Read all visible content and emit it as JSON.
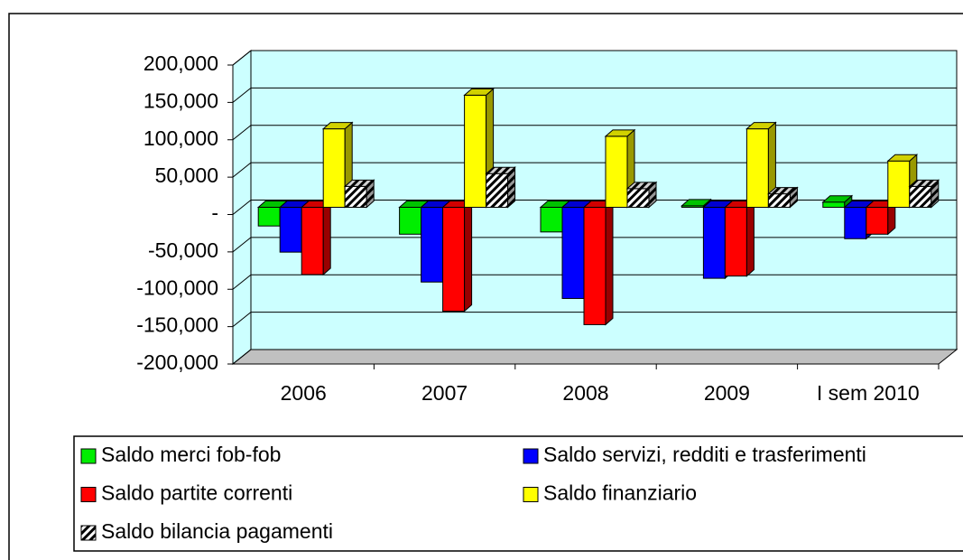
{
  "chart_data": {
    "type": "bar3d",
    "categories": [
      "2006",
      "2007",
      "2008",
      "2009",
      "I sem 2010"
    ],
    "series": [
      {
        "name": "Saldo merci fob-fob",
        "color": "#00ee00",
        "values": [
          -25000,
          -36000,
          -33000,
          2000,
          7000
        ]
      },
      {
        "name": "Saldo servizi, redditi e trasferimenti",
        "color": "#0000ff",
        "values": [
          -60000,
          -100000,
          -122000,
          -95000,
          -42000
        ]
      },
      {
        "name": "Saldo partite correnti",
        "color": "#ff0000",
        "values": [
          -90000,
          -139000,
          -157000,
          -92000,
          -36000
        ]
      },
      {
        "name": "Saldo finanziario",
        "color": "#ffff00",
        "values": [
          105000,
          150000,
          95000,
          105000,
          62000
        ]
      },
      {
        "name": "Saldo bilancia pagamenti",
        "color": "#000000",
        "fill_pattern": "diagonal-hatch",
        "values": [
          28000,
          45000,
          25000,
          18000,
          28000
        ]
      }
    ],
    "ylim": [
      -200000,
      200000
    ],
    "yticks": [
      {
        "value": -200000,
        "label": "-200,000"
      },
      {
        "value": -150000,
        "label": "-150,000"
      },
      {
        "value": -100000,
        "label": "-100,000"
      },
      {
        "value": -50000,
        "label": "-50,000"
      },
      {
        "value": 0,
        "label": "-"
      },
      {
        "value": 50000,
        "label": "50,000"
      },
      {
        "value": 100000,
        "label": "100,000"
      },
      {
        "value": 150000,
        "label": "150,000"
      },
      {
        "value": 200000,
        "label": "200,000"
      }
    ],
    "grid": true,
    "wall_color": "#ccffff",
    "floor_color": "#c0c0c0",
    "legend": "bottom"
  }
}
